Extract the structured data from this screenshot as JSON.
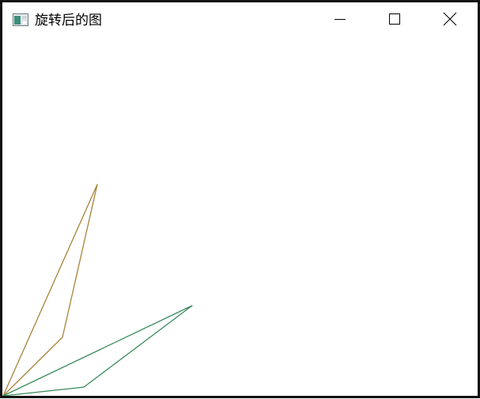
{
  "window": {
    "title": "旋转后的图",
    "icon": "app-window-icon",
    "controls": {
      "minimize_icon": "minimize-icon",
      "maximize_icon": "maximize-icon",
      "close_icon": "close-icon"
    }
  },
  "colors": {
    "frame": "#111111",
    "background": "#ffffff",
    "shape_original": "#a8833a",
    "shape_rotated": "#3a8a5c"
  }
}
